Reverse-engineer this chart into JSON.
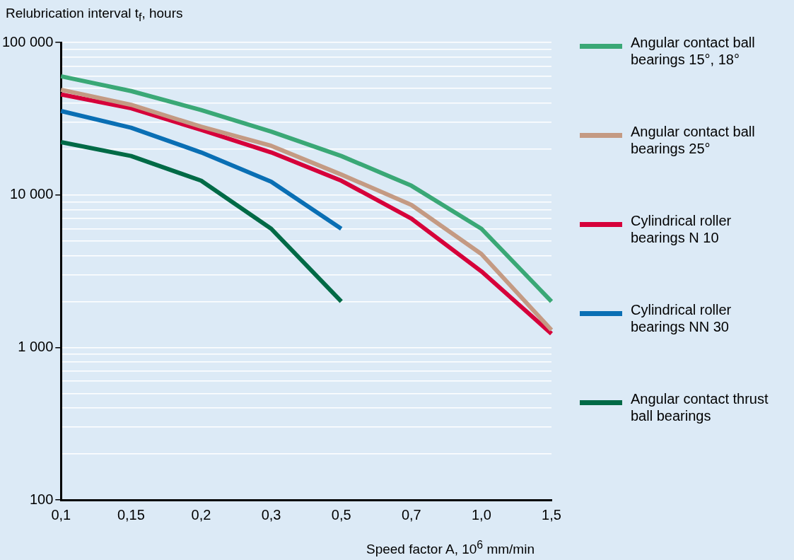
{
  "chart_data": {
    "type": "line",
    "ylabel": "Relubrication interval t$_{f}$, hours",
    "xlabel": "Speed factor A, 10$^{6}$ mm/min",
    "categories": [
      "0,1",
      "0,15",
      "0,2",
      "0,3",
      "0,5",
      "0,7",
      "1,0",
      "1,5"
    ],
    "series": [
      {
        "name": "Angular contact ball bearings 15°, 18°",
        "color": "#3aa876",
        "values": [
          60000,
          48000,
          36000,
          26000,
          18000,
          11500,
          6000,
          2000
        ]
      },
      {
        "name": "Angular contact ball bearings 25°",
        "color": "#c49a83",
        "values": [
          49000,
          39000,
          28000,
          21000,
          13600,
          8600,
          4100,
          1300
        ]
      },
      {
        "name": "Cylindrical roller bearings N 10",
        "color": "#d6003a",
        "values": [
          45600,
          37000,
          26700,
          19000,
          12400,
          7000,
          3150,
          1230
        ]
      },
      {
        "name": "Cylindrical roller bearings NN 30",
        "color": "#0a6fb4",
        "values": [
          35500,
          27600,
          19000,
          12200,
          6000,
          null,
          null,
          null
        ]
      },
      {
        "name": "Angular contact thrust ball bearings",
        "color": "#006a46",
        "values": [
          22200,
          18000,
          12400,
          6000,
          2000,
          null,
          null,
          null
        ]
      }
    ],
    "log": "y",
    "ylim": [
      100,
      100000
    ],
    "yticks": [
      {
        "value": 100,
        "label": "100"
      },
      {
        "value": 200,
        "label": null
      },
      {
        "value": 300,
        "label": null
      },
      {
        "value": 400,
        "label": null
      },
      {
        "value": 500,
        "label": null
      },
      {
        "value": 600,
        "label": null
      },
      {
        "value": 700,
        "label": null
      },
      {
        "value": 800,
        "label": null
      },
      {
        "value": 900,
        "label": null
      },
      {
        "value": 1000,
        "label": "1 000"
      },
      {
        "value": 2000,
        "label": null
      },
      {
        "value": 3000,
        "label": null
      },
      {
        "value": 4000,
        "label": null
      },
      {
        "value": 5000,
        "label": null
      },
      {
        "value": 6000,
        "label": null
      },
      {
        "value": 7000,
        "label": null
      },
      {
        "value": 8000,
        "label": null
      },
      {
        "value": 9000,
        "label": null
      },
      {
        "value": 10000,
        "label": "10 000"
      },
      {
        "value": 20000,
        "label": null
      },
      {
        "value": 30000,
        "label": null
      },
      {
        "value": 40000,
        "label": null
      },
      {
        "value": 50000,
        "label": null
      },
      {
        "value": 60000,
        "label": null
      },
      {
        "value": 70000,
        "label": null
      },
      {
        "value": 80000,
        "label": null
      },
      {
        "value": 90000,
        "label": null
      },
      {
        "value": 100000,
        "label": "100 000"
      }
    ],
    "grid": "y",
    "legend": "right"
  }
}
